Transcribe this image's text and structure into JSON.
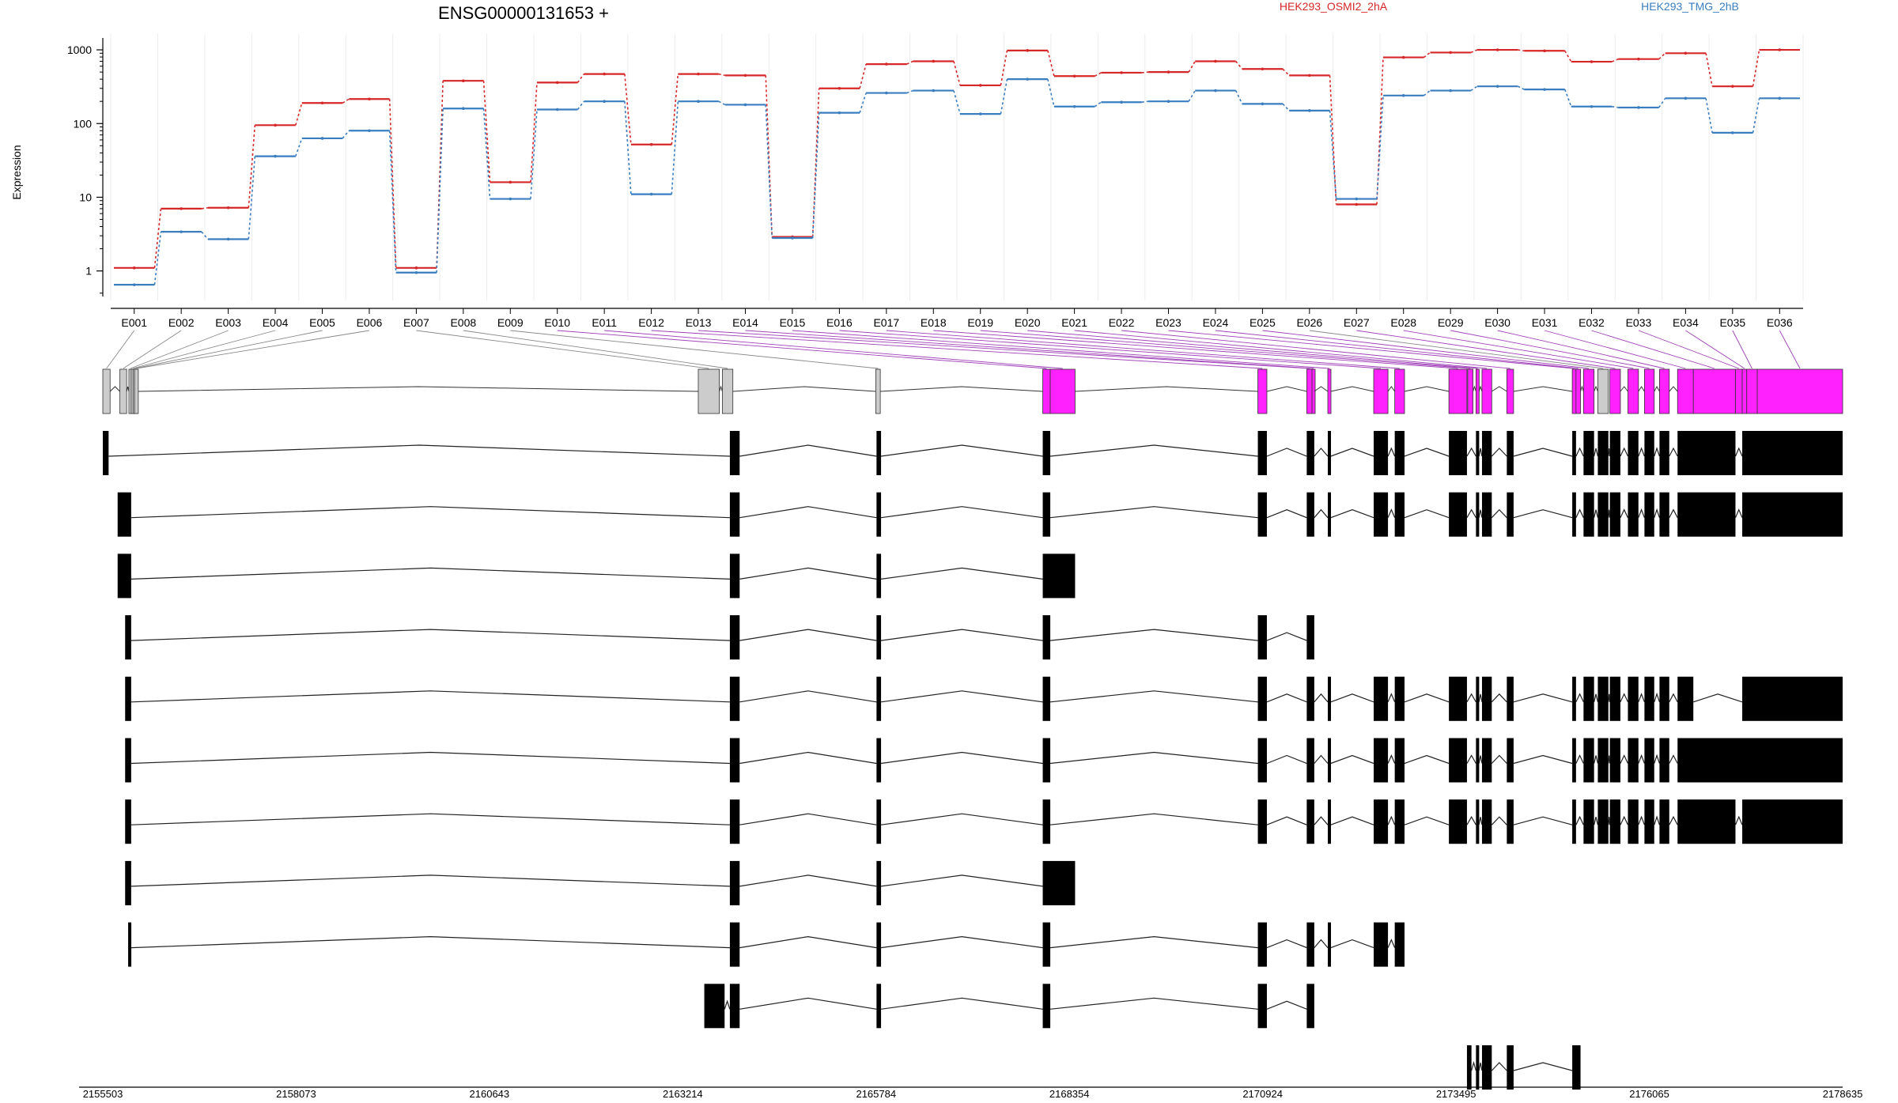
{
  "chart_data": {
    "type": "line",
    "title": "ENSG00000131653 +",
    "ylabel": "Expression",
    "yscale": "log",
    "ylim": [
      0.45,
      1450
    ],
    "yticks": [
      1,
      10,
      100,
      1000
    ],
    "ytick_labels": [
      "1",
      "10",
      "100",
      "1000"
    ],
    "grid": true,
    "legend": [
      {
        "name": "HEK293_OSMI2_2hA",
        "color": "#d62728"
      },
      {
        "name": "HEK293_TMG_2hB",
        "color": "#3a7ebf"
      }
    ],
    "categories": [
      "E001",
      "E002",
      "E003",
      "E004",
      "E005",
      "E006",
      "E007",
      "E008",
      "E009",
      "E010",
      "E011",
      "E012",
      "E013",
      "E014",
      "E015",
      "E016",
      "E017",
      "E018",
      "E019",
      "E020",
      "E021",
      "E022",
      "E023",
      "E024",
      "E025",
      "E026",
      "E027",
      "E028",
      "E029",
      "E030",
      "E031",
      "E032",
      "E033",
      "E034",
      "E035",
      "E036"
    ],
    "series": [
      {
        "name": "HEK293_OSMI2_2hA",
        "color": "#d62728",
        "values": [
          1.1,
          7,
          7.2,
          95,
          190,
          215,
          1.1,
          380,
          16,
          360,
          470,
          52,
          470,
          450,
          2.9,
          300,
          640,
          700,
          330,
          980,
          440,
          490,
          500,
          700,
          550,
          450,
          8,
          790,
          920,
          1000,
          970,
          690,
          750,
          900,
          320,
          1000
        ]
      },
      {
        "name": "HEK293_TMG_2hB",
        "color": "#3a7ebf",
        "values": [
          0.65,
          3.4,
          2.7,
          36,
          63,
          80,
          0.95,
          160,
          9.5,
          155,
          200,
          11,
          200,
          180,
          2.8,
          140,
          260,
          280,
          135,
          400,
          170,
          195,
          200,
          280,
          185,
          150,
          9.5,
          240,
          280,
          320,
          290,
          170,
          165,
          220,
          75,
          220
        ]
      }
    ],
    "exon_status": [
      "grey",
      "grey",
      "grey",
      "grey",
      "grey",
      "grey",
      "grey",
      "grey",
      "grey",
      "magenta",
      "magenta",
      "magenta",
      "magenta",
      "magenta",
      "magenta",
      "magenta",
      "magenta",
      "magenta",
      "magenta",
      "magenta",
      "magenta",
      "magenta",
      "magenta",
      "magenta",
      "magenta",
      "grey",
      "magenta",
      "magenta",
      "magenta",
      "magenta",
      "magenta",
      "magenta",
      "magenta",
      "magenta",
      "magenta",
      "magenta"
    ],
    "exon_highlight_color": "#ff22ff",
    "exon_plain_color": "#cccccc",
    "xlabel": "",
    "genomic_ticks": [
      "2155503",
      "2158073",
      "2160643",
      "2163214",
      "2165784",
      "2168354",
      "2170924",
      "2173495",
      "2176065",
      "2178635"
    ],
    "genomic_tick_values": [
      2155503,
      2158073,
      2160643,
      2163214,
      2165784,
      2168354,
      2170924,
      2173495,
      2176065,
      2178635
    ],
    "exon_bins": [
      [
        2155503,
        2155600
      ],
      [
        2155730,
        2155820
      ],
      [
        2155850,
        2155870
      ],
      [
        2155880,
        2155905
      ],
      [
        2155905,
        2155925
      ],
      [
        2155925,
        2155975
      ],
      [
        2163420,
        2163700
      ],
      [
        2163740,
        2163880
      ],
      [
        2165780,
        2165840
      ],
      [
        2168000,
        2168100
      ],
      [
        2168100,
        2168430
      ],
      [
        2170860,
        2170980
      ],
      [
        2171510,
        2171580
      ],
      [
        2171580,
        2171610
      ],
      [
        2171790,
        2171830
      ],
      [
        2172400,
        2172590
      ],
      [
        2172680,
        2172810
      ],
      [
        2173400,
        2173640
      ],
      [
        2173650,
        2173720
      ],
      [
        2173760,
        2173800
      ],
      [
        2173840,
        2173970
      ],
      [
        2174170,
        2174260
      ],
      [
        2175040,
        2175090
      ],
      [
        2175090,
        2175150
      ],
      [
        2175190,
        2175330
      ],
      [
        2175380,
        2175520
      ],
      [
        2175540,
        2175680
      ],
      [
        2175780,
        2175920
      ],
      [
        2176000,
        2176130
      ],
      [
        2176200,
        2176330
      ],
      [
        2176440,
        2176650
      ],
      [
        2176650,
        2177210
      ],
      [
        2177210,
        2177300
      ],
      [
        2177300,
        2177360
      ],
      [
        2177360,
        2177500
      ],
      [
        2177500,
        2178635
      ]
    ],
    "exon_map": [
      [
        0,
        0
      ],
      [
        1,
        1
      ],
      [
        2,
        2
      ],
      [
        3,
        3
      ],
      [
        4,
        4
      ],
      [
        5,
        5
      ],
      [
        6,
        6
      ],
      [
        7,
        7
      ],
      [
        8,
        8
      ],
      [
        9,
        9
      ],
      [
        10,
        10
      ],
      [
        11,
        11
      ],
      [
        12,
        12
      ],
      [
        13,
        13
      ],
      [
        14,
        14
      ],
      [
        15,
        15
      ],
      [
        16,
        16
      ],
      [
        17,
        17
      ],
      [
        18,
        18
      ],
      [
        19,
        19
      ],
      [
        20,
        20
      ],
      [
        21,
        21
      ],
      [
        22,
        22
      ],
      [
        23,
        23
      ],
      [
        24,
        24
      ],
      [
        25,
        25
      ],
      [
        26,
        26
      ],
      [
        27,
        27
      ],
      [
        28,
        28
      ],
      [
        29,
        29
      ],
      [
        30,
        30
      ],
      [
        31,
        31
      ],
      [
        32,
        32
      ],
      [
        33,
        33
      ],
      [
        34,
        34
      ],
      [
        35,
        35
      ]
    ],
    "transcripts": [
      [
        [
          2155503,
          2155580
        ],
        [
          2163840,
          2163970
        ],
        [
          2165790,
          2165850
        ],
        [
          2168000,
          2168100
        ],
        [
          2170860,
          2170980
        ],
        [
          2171510,
          2171610
        ],
        [
          2171790,
          2171830
        ],
        [
          2172400,
          2172590
        ],
        [
          2172680,
          2172810
        ],
        [
          2173400,
          2173640
        ],
        [
          2173760,
          2173800
        ],
        [
          2173840,
          2173970
        ],
        [
          2174170,
          2174260
        ],
        [
          2175040,
          2175090
        ],
        [
          2175190,
          2175330
        ],
        [
          2175380,
          2175520
        ],
        [
          2175540,
          2175680
        ],
        [
          2175780,
          2175920
        ],
        [
          2176000,
          2176130
        ],
        [
          2176200,
          2176330
        ],
        [
          2176440,
          2177210
        ],
        [
          2177300,
          2178635
        ]
      ],
      [
        [
          2155700,
          2155880
        ],
        [
          2163840,
          2163970
        ],
        [
          2165790,
          2165850
        ],
        [
          2168000,
          2168100
        ],
        [
          2170860,
          2170980
        ],
        [
          2171510,
          2171610
        ],
        [
          2171790,
          2171830
        ],
        [
          2172400,
          2172590
        ],
        [
          2172680,
          2172810
        ],
        [
          2173400,
          2173640
        ],
        [
          2173760,
          2173800
        ],
        [
          2173840,
          2173970
        ],
        [
          2174170,
          2174260
        ],
        [
          2175040,
          2175090
        ],
        [
          2175190,
          2175330
        ],
        [
          2175380,
          2175520
        ],
        [
          2175540,
          2175680
        ],
        [
          2175780,
          2175920
        ],
        [
          2176000,
          2176130
        ],
        [
          2176200,
          2176330
        ],
        [
          2176440,
          2177210
        ],
        [
          2177300,
          2178635
        ]
      ],
      [
        [
          2155700,
          2155880
        ],
        [
          2163840,
          2163970
        ],
        [
          2165790,
          2165850
        ],
        [
          2168000,
          2168430
        ]
      ],
      [
        [
          2155800,
          2155880
        ],
        [
          2163840,
          2163970
        ],
        [
          2165790,
          2165850
        ],
        [
          2168000,
          2168100
        ],
        [
          2170860,
          2170980
        ],
        [
          2171510,
          2171610
        ]
      ],
      [
        [
          2155800,
          2155880
        ],
        [
          2163840,
          2163970
        ],
        [
          2165790,
          2165850
        ],
        [
          2168000,
          2168100
        ],
        [
          2170860,
          2170980
        ],
        [
          2171510,
          2171610
        ],
        [
          2171790,
          2171830
        ],
        [
          2172400,
          2172590
        ],
        [
          2172680,
          2172810
        ],
        [
          2173400,
          2173640
        ],
        [
          2173760,
          2173800
        ],
        [
          2173840,
          2173970
        ],
        [
          2174170,
          2174260
        ],
        [
          2175040,
          2175090
        ],
        [
          2175190,
          2175330
        ],
        [
          2175380,
          2175520
        ],
        [
          2175540,
          2175680
        ],
        [
          2175780,
          2175920
        ],
        [
          2176000,
          2176130
        ],
        [
          2176200,
          2176330
        ],
        [
          2176440,
          2176650
        ],
        [
          2177300,
          2178635
        ]
      ],
      [
        [
          2155800,
          2155880
        ],
        [
          2163840,
          2163970
        ],
        [
          2165790,
          2165850
        ],
        [
          2168000,
          2168100
        ],
        [
          2170860,
          2170980
        ],
        [
          2171510,
          2171610
        ],
        [
          2171790,
          2171830
        ],
        [
          2172400,
          2172590
        ],
        [
          2172680,
          2172810
        ],
        [
          2173400,
          2173640
        ],
        [
          2173760,
          2173800
        ],
        [
          2173840,
          2173970
        ],
        [
          2174170,
          2174260
        ],
        [
          2175040,
          2175090
        ],
        [
          2175190,
          2175330
        ],
        [
          2175380,
          2175520
        ],
        [
          2175540,
          2175680
        ],
        [
          2175780,
          2175920
        ],
        [
          2176000,
          2176130
        ],
        [
          2176200,
          2176330
        ],
        [
          2176440,
          2178635
        ]
      ],
      [
        [
          2155800,
          2155880
        ],
        [
          2163840,
          2163970
        ],
        [
          2165790,
          2165850
        ],
        [
          2168000,
          2168100
        ],
        [
          2170860,
          2170980
        ],
        [
          2171510,
          2171610
        ],
        [
          2171790,
          2171830
        ],
        [
          2172400,
          2172590
        ],
        [
          2172680,
          2172810
        ],
        [
          2173400,
          2173640
        ],
        [
          2173760,
          2173800
        ],
        [
          2173840,
          2173970
        ],
        [
          2174170,
          2174260
        ],
        [
          2175040,
          2175090
        ],
        [
          2175190,
          2175330
        ],
        [
          2175380,
          2175520
        ],
        [
          2175540,
          2175680
        ],
        [
          2175780,
          2175920
        ],
        [
          2176000,
          2176130
        ],
        [
          2176200,
          2176330
        ],
        [
          2176440,
          2177210
        ],
        [
          2177300,
          2178635
        ]
      ],
      [
        [
          2155800,
          2155880
        ],
        [
          2163840,
          2163970
        ],
        [
          2165790,
          2165850
        ],
        [
          2168000,
          2168430
        ]
      ],
      [
        [
          2155840,
          2155880
        ],
        [
          2163840,
          2163970
        ],
        [
          2165790,
          2165850
        ],
        [
          2168000,
          2168100
        ],
        [
          2170860,
          2170980
        ],
        [
          2171510,
          2171610
        ],
        [
          2171790,
          2171830
        ],
        [
          2172400,
          2172590
        ],
        [
          2172680,
          2172810
        ]
      ],
      [
        [
          2163500,
          2163770
        ],
        [
          2163840,
          2163970
        ],
        [
          2165790,
          2165850
        ],
        [
          2168000,
          2168100
        ],
        [
          2170860,
          2170980
        ],
        [
          2171510,
          2171610
        ]
      ],
      [
        [
          2173640,
          2173700
        ],
        [
          2173760,
          2173800
        ],
        [
          2173840,
          2173970
        ],
        [
          2174170,
          2174260
        ],
        [
          2175040,
          2175150
        ]
      ]
    ]
  }
}
